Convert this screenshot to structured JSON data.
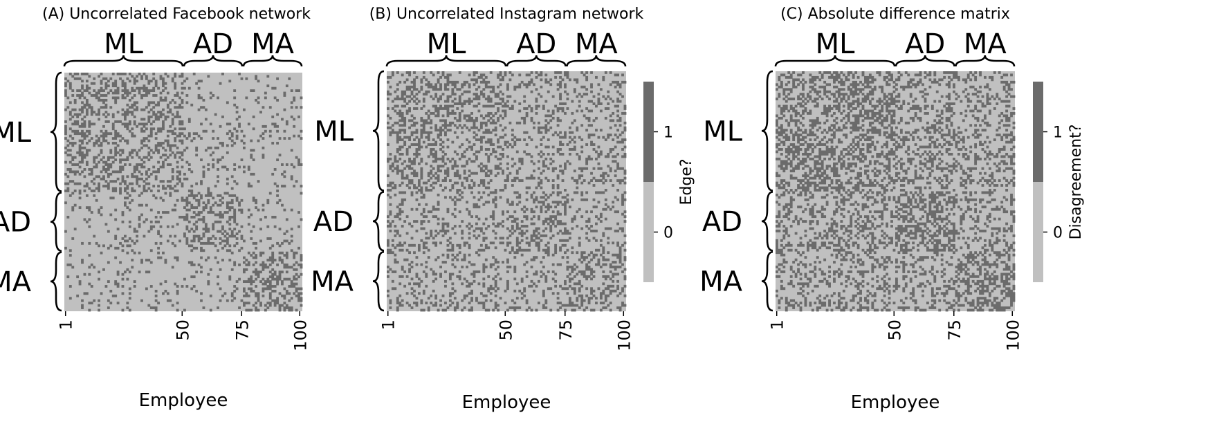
{
  "chart_data": [
    {
      "type": "heatmap",
      "title": "(A) Uncorrelated Facebook network",
      "xlabel": "Employee",
      "ylabel": "",
      "n": 100,
      "x_ticks": [
        "1",
        "50",
        "75",
        "100"
      ],
      "x_tick_values": [
        1,
        50,
        75,
        100
      ],
      "groups": [
        {
          "label": "ML",
          "start": 1,
          "end": 50
        },
        {
          "label": "AD",
          "start": 51,
          "end": 75
        },
        {
          "label": "MA",
          "start": 76,
          "end": 100
        }
      ],
      "block_edge_probability": [
        [
          0.35,
          0.1,
          0.1
        ],
        [
          0.1,
          0.35,
          0.1
        ],
        [
          0.1,
          0.1,
          0.35
        ]
      ],
      "values": [
        0,
        1
      ],
      "colorbar": null
    },
    {
      "type": "heatmap",
      "title": "(B) Uncorrelated Instagram network",
      "xlabel": "Employee",
      "ylabel": "",
      "n": 100,
      "x_ticks": [
        "1",
        "50",
        "75",
        "100"
      ],
      "x_tick_values": [
        1,
        50,
        75,
        100
      ],
      "groups": [
        {
          "label": "ML",
          "start": 1,
          "end": 50
        },
        {
          "label": "AD",
          "start": 51,
          "end": 75
        },
        {
          "label": "MA",
          "start": 76,
          "end": 100
        }
      ],
      "block_edge_probability": [
        [
          0.35,
          0.2,
          0.2
        ],
        [
          0.2,
          0.35,
          0.2
        ],
        [
          0.2,
          0.2,
          0.35
        ]
      ],
      "values": [
        0,
        1
      ],
      "colorbar": {
        "label": "Edge?",
        "ticks": [
          "0",
          "1"
        ]
      }
    },
    {
      "type": "heatmap",
      "title": "(C) Absolute difference matrix",
      "xlabel": "Employee",
      "ylabel": "",
      "n": 100,
      "x_ticks": [
        "1",
        "50",
        "75",
        "100"
      ],
      "x_tick_values": [
        1,
        50,
        75,
        100
      ],
      "groups": [
        {
          "label": "ML",
          "start": 1,
          "end": 50
        },
        {
          "label": "AD",
          "start": 51,
          "end": 75
        },
        {
          "label": "MA",
          "start": 76,
          "end": 100
        }
      ],
      "values": [
        0,
        1
      ],
      "colorbar": {
        "label": "Disagreement?",
        "ticks": [
          "0",
          "1"
        ]
      }
    }
  ],
  "colors": {
    "zero": "#c0c0c0",
    "one": "#6b6b6b",
    "text": "#000000"
  }
}
